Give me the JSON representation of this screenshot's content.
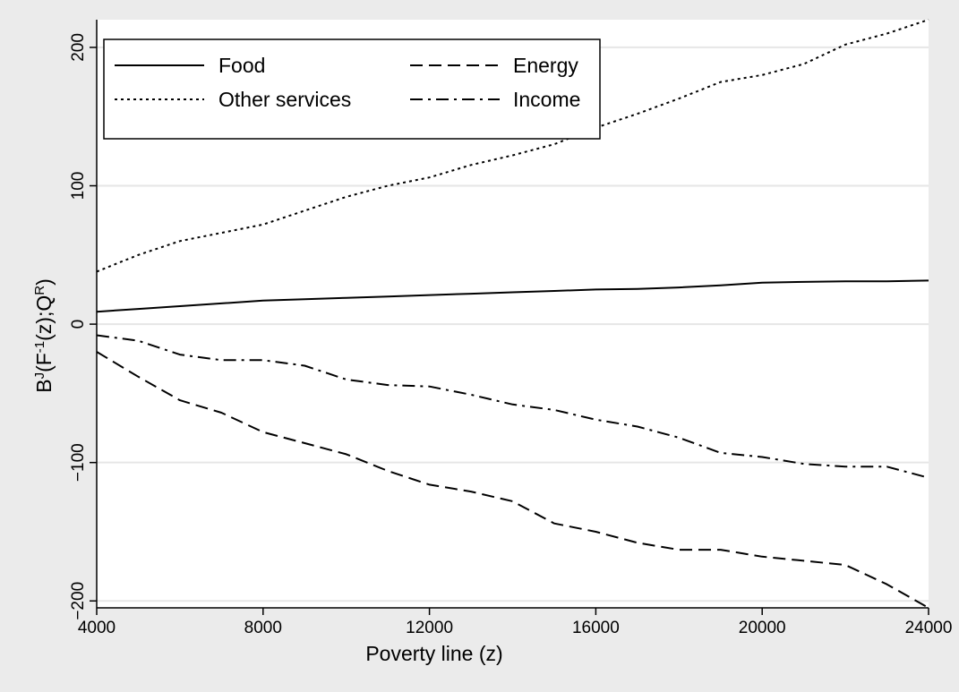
{
  "colors": {
    "outer_background": "#ebebeb",
    "plot_background": "#ffffff",
    "gridline": "#e6e6e6",
    "series": "#000000"
  },
  "chart_data": {
    "type": "line",
    "xlabel": "Poverty line (z)",
    "ylabel": {
      "parts": [
        "B",
        "J",
        "(F",
        "-1",
        "(z);Q",
        "R",
        ")"
      ],
      "full": "B^J(F^-1(z);Q^R)"
    },
    "xlim": [
      4000,
      24000
    ],
    "ylim": [
      -205,
      220
    ],
    "xticks": [
      4000,
      8000,
      12000,
      16000,
      20000,
      24000
    ],
    "xtick_labels": [
      "4000",
      "8000",
      "12000",
      "16000",
      "20000",
      "24000"
    ],
    "yticks": [
      -200,
      -100,
      0,
      100,
      200
    ],
    "ytick_labels": [
      "−200",
      "−100",
      "0",
      "100",
      "200"
    ],
    "grid": "horizontal",
    "legend_position": "top-left",
    "x": [
      4000,
      5000,
      6000,
      7000,
      8000,
      9000,
      10000,
      11000,
      12000,
      13000,
      14000,
      15000,
      16000,
      17000,
      18000,
      19000,
      20000,
      21000,
      22000,
      23000,
      24000
    ],
    "series": [
      {
        "name": "Food",
        "dash": "solid",
        "values": [
          9,
          11,
          13,
          15,
          17,
          18,
          19,
          20,
          21,
          22,
          23,
          24,
          25,
          25.5,
          26.5,
          28,
          30,
          30.5,
          31,
          31,
          31.5
        ]
      },
      {
        "name": "Energy",
        "dash": "dash",
        "values": [
          -20,
          -38,
          -55,
          -64,
          -78,
          -86,
          -94,
          -106,
          -116,
          -121,
          -128,
          -144,
          -150,
          -158,
          -163,
          -163,
          -168,
          -171,
          -174,
          -188,
          -205
        ]
      },
      {
        "name": "Other services",
        "dash": "dot",
        "values": [
          38,
          50,
          60,
          66,
          72,
          82,
          92,
          100,
          106,
          115,
          122,
          130,
          142,
          152,
          163,
          175,
          180,
          188,
          202,
          210,
          220
        ]
      },
      {
        "name": "Income",
        "dash": "dashdot",
        "values": [
          -8,
          -12,
          -22,
          -26,
          -26,
          -30,
          -40,
          -44,
          -45,
          -51,
          -58,
          -62,
          -69,
          -74,
          -82,
          -93,
          -96,
          -101,
          -103,
          -103,
          -111
        ]
      }
    ],
    "legend": {
      "layout": "two-column",
      "order": [
        "Food",
        "Energy",
        "Other services",
        "Income"
      ]
    }
  }
}
